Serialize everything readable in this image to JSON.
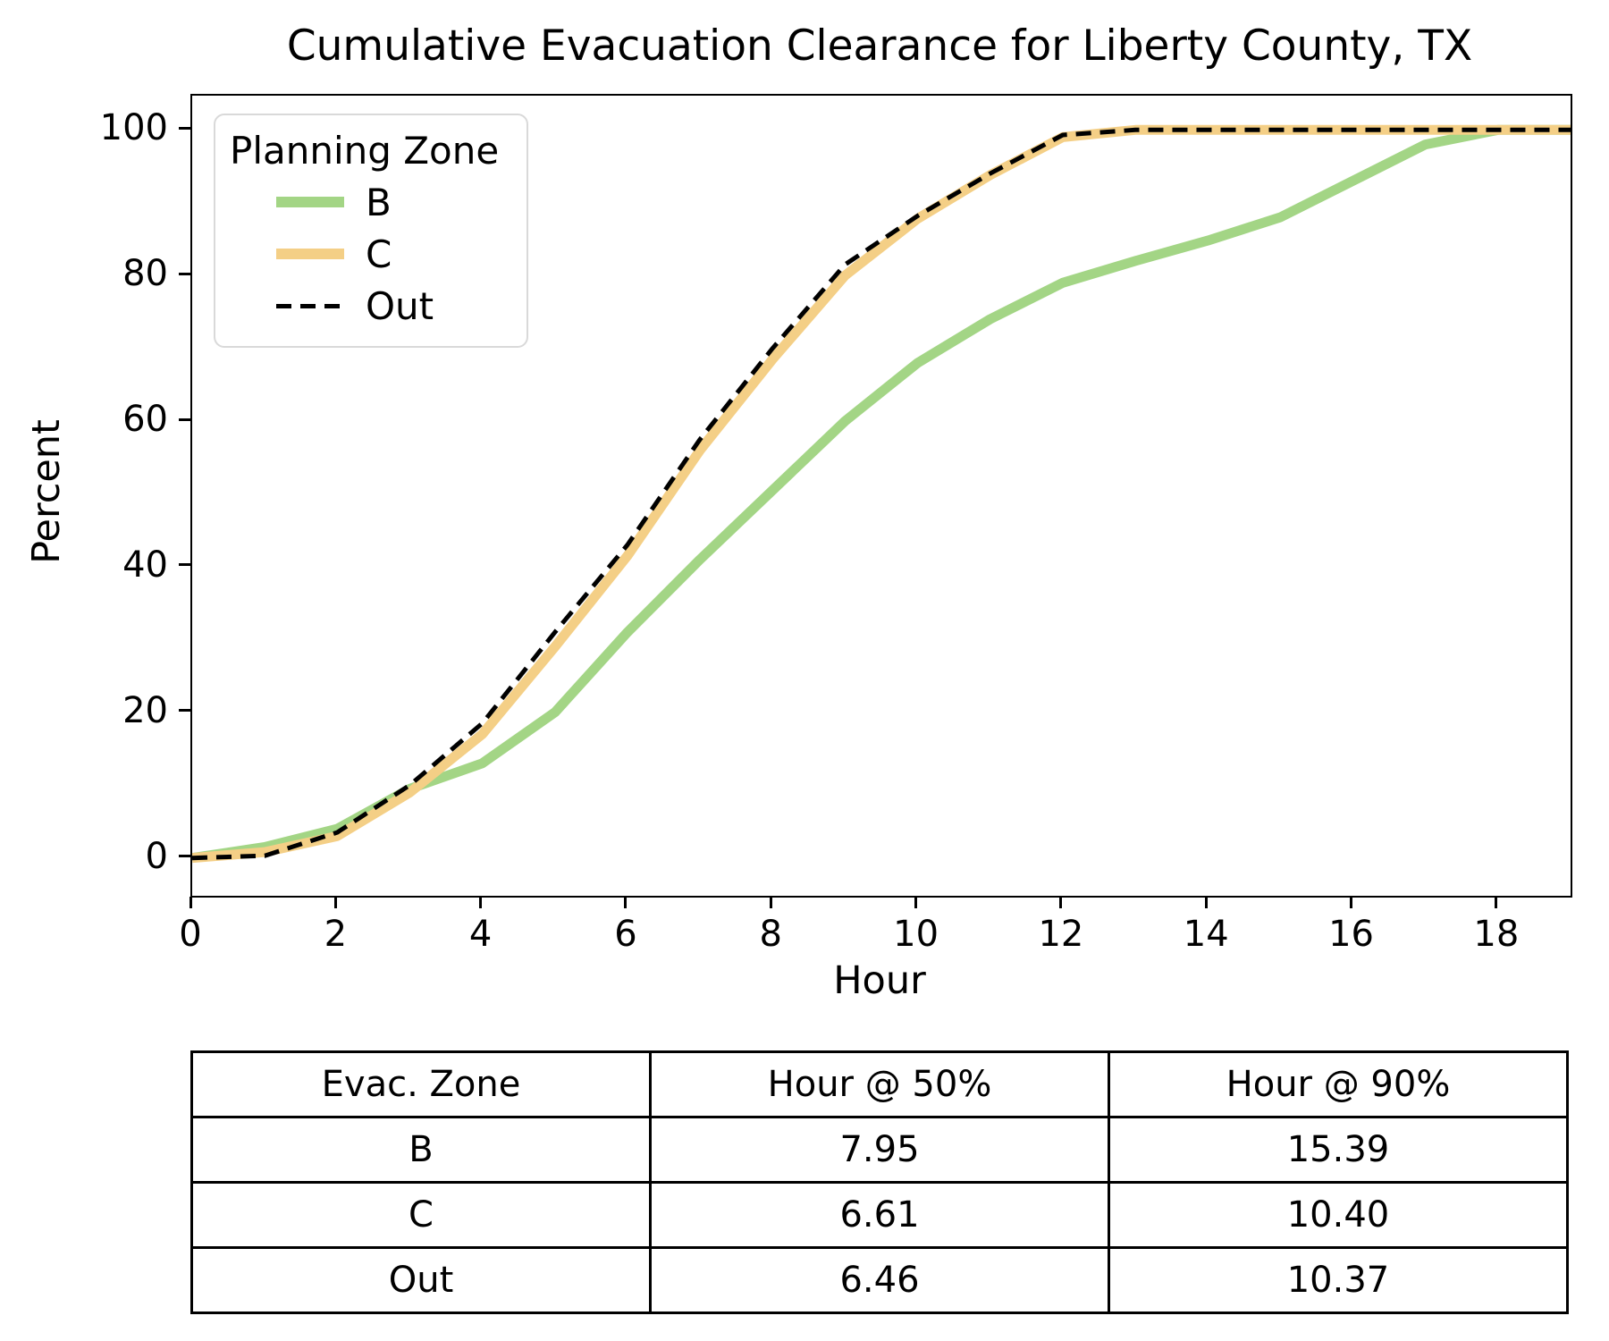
{
  "title": "Cumulative Evacuation Clearance for Liberty County, TX",
  "chart_data": {
    "type": "line",
    "title": "Cumulative Evacuation Clearance for Liberty County, TX",
    "xlabel": "Hour",
    "ylabel": "Percent",
    "xlim": [
      0,
      19
    ],
    "ylim": [
      -5.2,
      104.7
    ],
    "x_ticks": [
      0,
      2,
      4,
      6,
      8,
      10,
      12,
      14,
      16,
      18
    ],
    "y_ticks": [
      0,
      20,
      40,
      60,
      80,
      100
    ],
    "grid": false,
    "legend_title": "Planning Zone",
    "legend_position": "upper left",
    "x": [
      0,
      1,
      2,
      3,
      4,
      5,
      6,
      7,
      8,
      9,
      10,
      11,
      12,
      13,
      14,
      15,
      16,
      17,
      18,
      19
    ],
    "series": [
      {
        "name": "B",
        "color": "#a3d585",
        "style": "solid",
        "values": [
          0,
          1.5,
          4,
          9.5,
          13,
          20,
          31,
          41,
          50.5,
          60,
          68,
          74,
          79,
          82,
          84.8,
          88,
          93,
          98,
          100,
          100
        ]
      },
      {
        "name": "C",
        "color": "#f4cf86",
        "style": "solid",
        "values": [
          0,
          0.8,
          3,
          9,
          17,
          29,
          41.5,
          56,
          68.5,
          80,
          87.8,
          93.8,
          99,
          100,
          100,
          100,
          100,
          100,
          100,
          100
        ]
      },
      {
        "name": "Out",
        "color": "#000000",
        "style": "dashed",
        "values": [
          0,
          0.3,
          3.5,
          10,
          18.5,
          31,
          43,
          57.5,
          70,
          81.5,
          88.2,
          94,
          99.3,
          100,
          100,
          100,
          100,
          100,
          100,
          100
        ]
      }
    ]
  },
  "table": {
    "headers": [
      "Evac. Zone",
      "Hour @ 50%",
      "Hour @ 90%"
    ],
    "rows": [
      [
        "B",
        "7.95",
        "15.39"
      ],
      [
        "C",
        "6.61",
        "10.40"
      ],
      [
        "Out",
        "6.46",
        "10.37"
      ]
    ]
  }
}
